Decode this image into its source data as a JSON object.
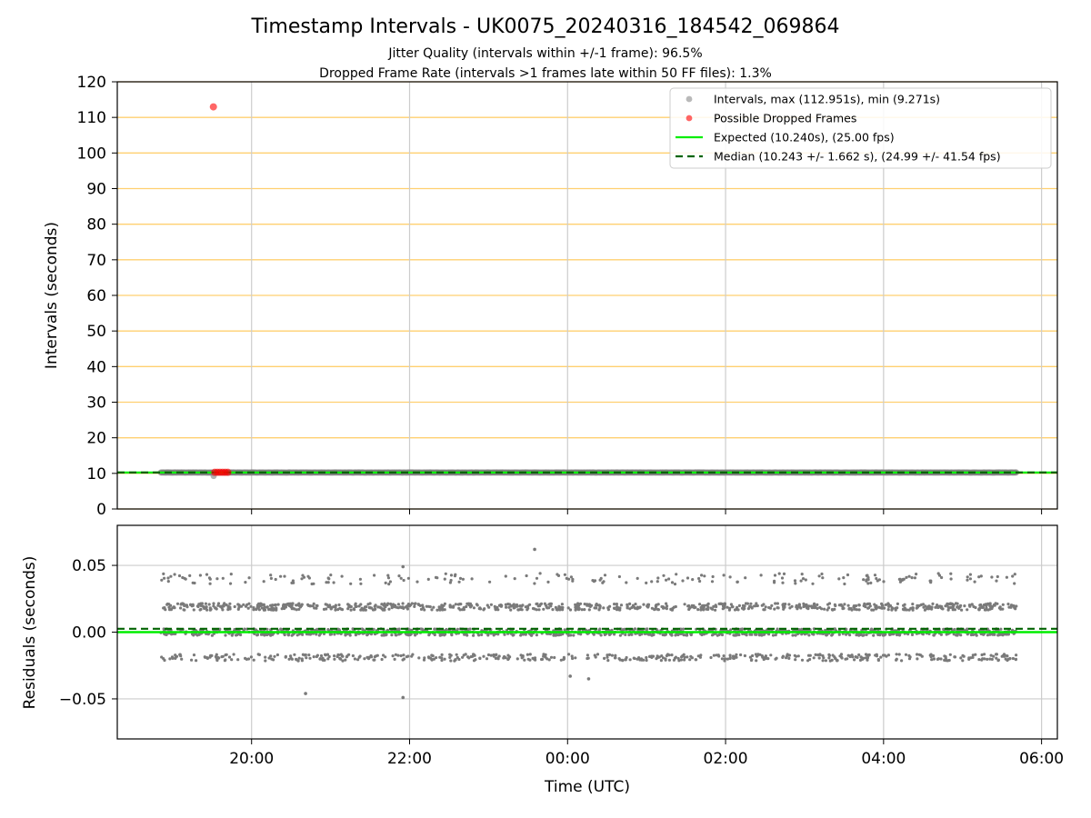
{
  "chart_data": [
    {
      "type": "scatter",
      "title": "Timestamp Intervals - UK0075_20240316_184542_069864",
      "subtitle_lines": [
        "Jitter Quality (intervals within +/-1 frame): 96.5%",
        "Dropped Frame Rate (intervals >1 frames late within 50 FF files): 1.3%"
      ],
      "xlabel": "",
      "ylabel": "Intervals (seconds)",
      "ylim": [
        0,
        120
      ],
      "yticks": [
        0,
        10,
        20,
        30,
        40,
        50,
        60,
        70,
        80,
        90,
        100,
        110,
        120
      ],
      "xlim_hours": [
        18.3,
        30.2
      ],
      "xtick_hours": [
        20,
        22,
        24,
        26,
        28,
        30
      ],
      "grid": true,
      "legend_position": "top-right",
      "threshold_lines": [
        0,
        10,
        20,
        30,
        40,
        50,
        60,
        70,
        80,
        90,
        100,
        110,
        120
      ],
      "x_range_hours": [
        18.85,
        29.68
      ],
      "series": [
        {
          "name": "Intervals, max (112.951s), min (9.271s)",
          "kind": "points",
          "color": "#808080",
          "typical_value": 10.24,
          "max": 112.951,
          "min": 9.271
        },
        {
          "name": "Possible Dropped Frames",
          "kind": "points",
          "color": "#ff0000",
          "points": [
            {
              "x": "19:31",
              "y": 112.951
            },
            {
              "x": "19:32",
              "y": 10.3
            },
            {
              "x": "19:34",
              "y": 10.3
            },
            {
              "x": "19:36",
              "y": 10.3
            },
            {
              "x": "19:38",
              "y": 10.3
            },
            {
              "x": "19:40",
              "y": 10.3
            },
            {
              "x": "19:42",
              "y": 10.3
            }
          ]
        },
        {
          "name": "Expected (10.240s), (25.00 fps)",
          "kind": "hline",
          "color": "#00ee00",
          "y": 10.24
        },
        {
          "name": "Median (10.243 +/- 1.662 s), (24.99 +/- 41.54 fps)",
          "kind": "hline-dashed",
          "color": "#006400",
          "y": 10.243
        }
      ]
    },
    {
      "type": "scatter",
      "xlabel": "Time (UTC)",
      "ylabel": "Residuals (seconds)",
      "ylim": [
        -0.08,
        0.08
      ],
      "ytick_values": [
        -0.05,
        0.0,
        0.05
      ],
      "ytick_labels": [
        "−0.05",
        "0.00",
        "0.05"
      ],
      "xtick_labels": [
        "20:00",
        "22:00",
        "00:00",
        "02:00",
        "04:00",
        "06:00"
      ],
      "grid": true,
      "residual_bands": [
        -0.019,
        0.0,
        0.019,
        0.04
      ],
      "outliers": [
        {
          "x": "20:41",
          "y": -0.046
        },
        {
          "x": "21:55",
          "y": -0.049
        },
        {
          "x": "21:55",
          "y": 0.049
        },
        {
          "x": "23:35",
          "y": 0.062
        },
        {
          "x": "00:16",
          "y": -0.035
        },
        {
          "x": "00:02",
          "y": -0.033
        }
      ],
      "lines": [
        {
          "kind": "hline",
          "color": "#00ee00",
          "y": 0.0
        },
        {
          "kind": "hline-dashed",
          "color": "#006400",
          "y": 0.0025
        }
      ]
    }
  ]
}
